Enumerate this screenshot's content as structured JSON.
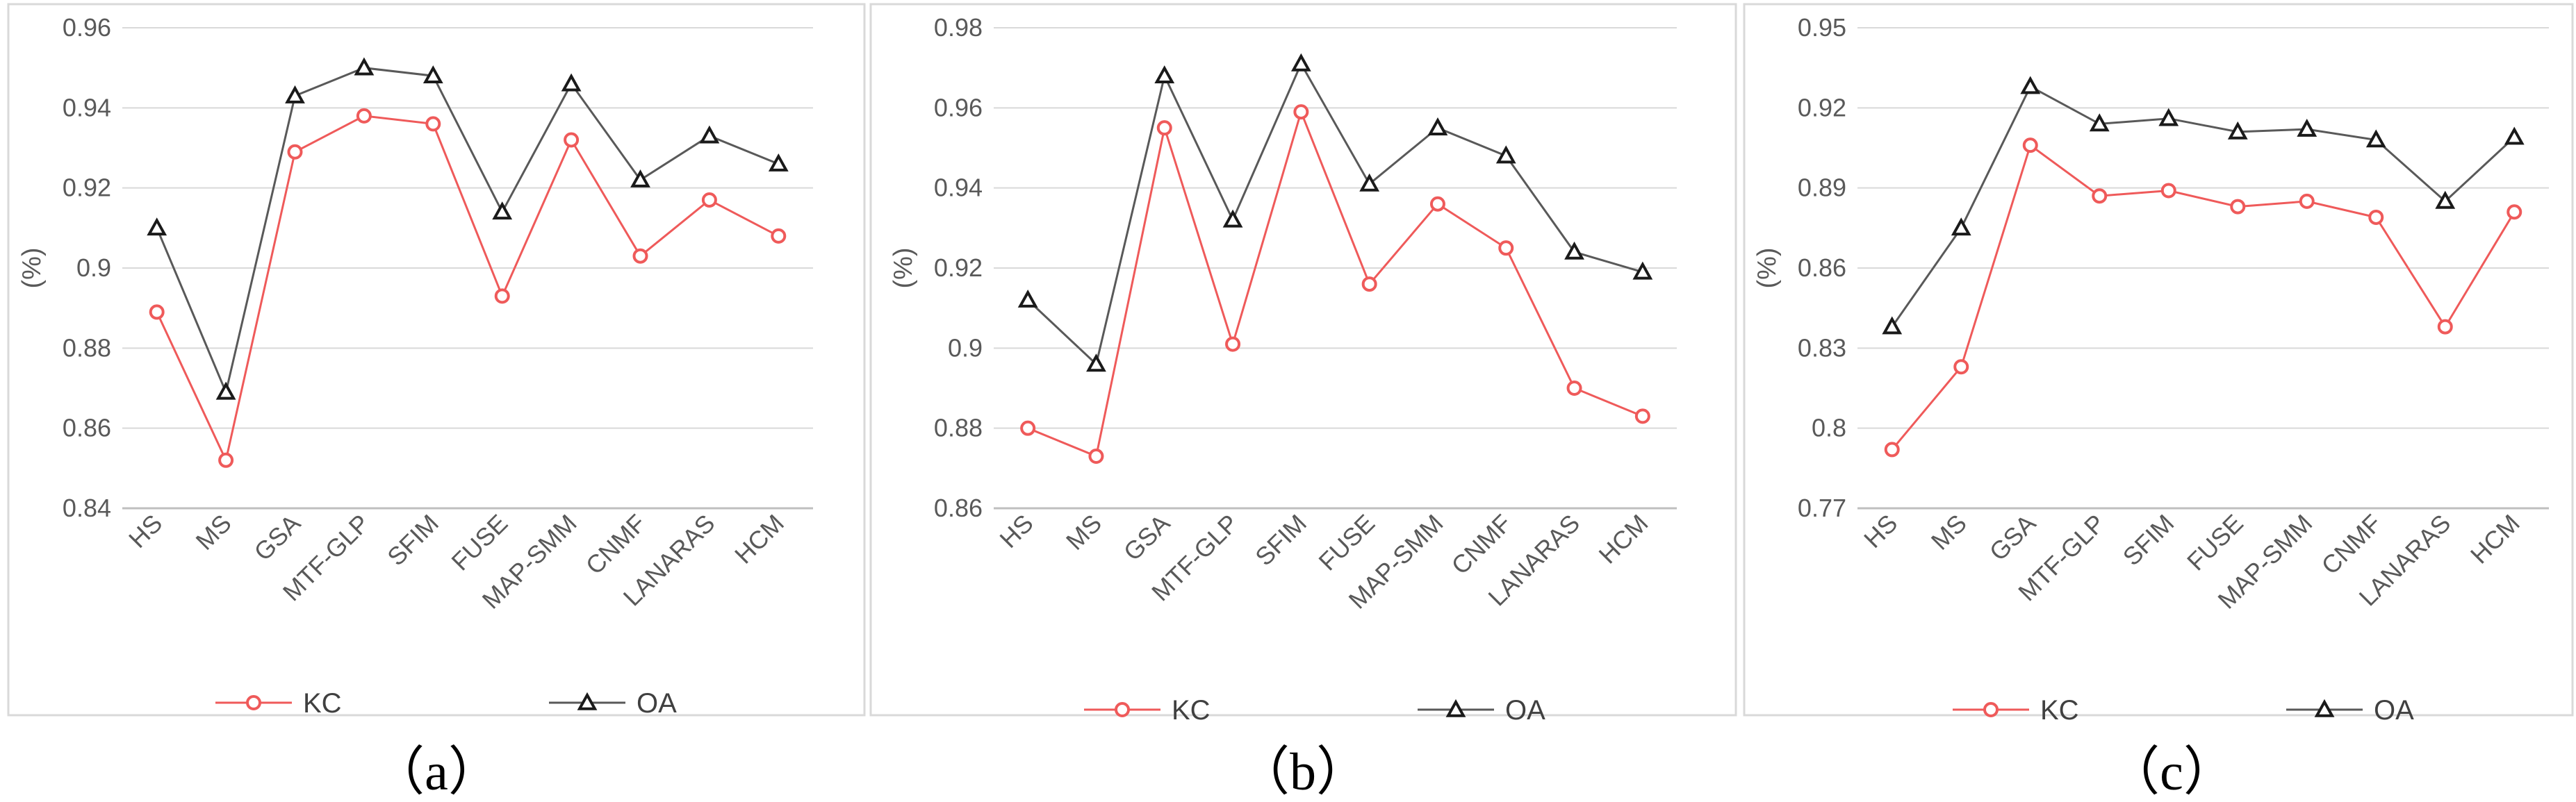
{
  "chart_data": [
    {
      "type": "line",
      "panel_label": "（a）",
      "categories": [
        "HS",
        "MS",
        "GSA",
        "MTF-GLP",
        "SFIM",
        "FUSE",
        "MAP-SMM",
        "CNMF",
        "LANARAS",
        "HCM"
      ],
      "ylabel": "(%)",
      "ylim": [
        0.84,
        0.96
      ],
      "yticks": [
        "0.84",
        "0.86",
        "0.88",
        "0.9",
        "0.92",
        "0.94",
        "0.96"
      ],
      "grid": true,
      "series": [
        {
          "name": "KC",
          "color": "#ef5a5a",
          "marker": "circle",
          "values": [
            0.889,
            0.852,
            0.929,
            0.938,
            0.936,
            0.893,
            0.932,
            0.903,
            0.917,
            0.908
          ]
        },
        {
          "name": "OA",
          "color": "#595959",
          "marker": "triangle",
          "values": [
            0.91,
            0.869,
            0.943,
            0.95,
            0.948,
            0.914,
            0.946,
            0.922,
            0.933,
            0.926
          ]
        }
      ]
    },
    {
      "type": "line",
      "panel_label": "（b）",
      "categories": [
        "HS",
        "MS",
        "GSA",
        "MTF-GLP",
        "SFIM",
        "FUSE",
        "MAP-SMM",
        "CNMF",
        "LANARAS",
        "HCM"
      ],
      "ylabel": "(%)",
      "ylim": [
        0.86,
        0.98
      ],
      "yticks": [
        "0.86",
        "0.88",
        "0.9",
        "0.92",
        "0.94",
        "0.96",
        "0.98"
      ],
      "grid": true,
      "series": [
        {
          "name": "KC",
          "color": "#ef5a5a",
          "marker": "circle",
          "values": [
            0.88,
            0.873,
            0.955,
            0.901,
            0.959,
            0.916,
            0.936,
            0.925,
            0.89,
            0.883
          ]
        },
        {
          "name": "OA",
          "color": "#595959",
          "marker": "triangle",
          "values": [
            0.912,
            0.896,
            0.968,
            0.932,
            0.971,
            0.941,
            0.955,
            0.948,
            0.924,
            0.919
          ]
        }
      ]
    },
    {
      "type": "line",
      "panel_label": "（c）",
      "categories": [
        "HS",
        "MS",
        "GSA",
        "MTF-GLP",
        "SFIM",
        "FUSE",
        "MAP-SMM",
        "CNMF",
        "LANARAS",
        "HCM"
      ],
      "ylabel": "(%)",
      "ylim": [
        0.77,
        0.95
      ],
      "yticks": [
        "0.77",
        "0.8",
        "0.83",
        "0.86",
        "0.89",
        "0.92",
        "0.95"
      ],
      "grid": true,
      "series": [
        {
          "name": "KC",
          "color": "#ef5a5a",
          "marker": "circle",
          "values": [
            0.792,
            0.823,
            0.906,
            0.887,
            0.889,
            0.883,
            0.885,
            0.879,
            0.838,
            0.881
          ]
        },
        {
          "name": "OA",
          "color": "#595959",
          "marker": "triangle",
          "values": [
            0.838,
            0.875,
            0.928,
            0.914,
            0.916,
            0.911,
            0.912,
            0.908,
            0.885,
            0.909
          ]
        }
      ]
    }
  ]
}
